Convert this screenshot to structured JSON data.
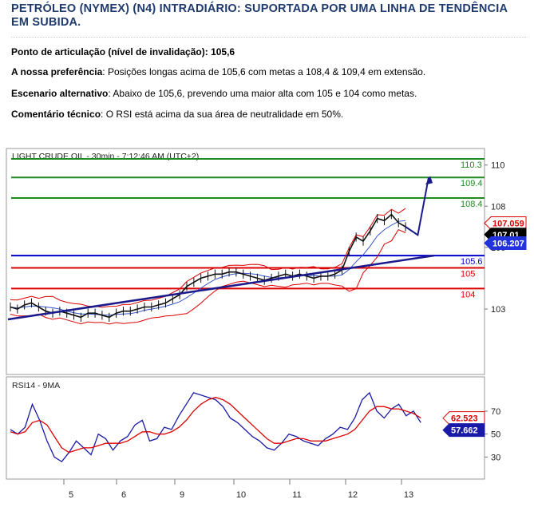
{
  "article": {
    "headline": "PETRÓLEO (NYMEX) (N4) INTRADIÁRIO: SUPORTADA POR UMA LINHA DE TENDÊNCIA EM SUBIDA.",
    "pivot": {
      "label": "Ponto de articulação (nível de invalidação):",
      "value": "105,6"
    },
    "preference": {
      "label": "A nossa preferência",
      "text": ": Posições longas acima de 105,6 com metas a 108,4 & 109,4 em extensão."
    },
    "alternative": {
      "label": "Escenario alternativo",
      "text": ": Abaixo de 105,6, prevendo uma maior alta com 105 e 104 como metas."
    },
    "comment": {
      "label": "Comentário técnico",
      "text": ": O RSI está acima da sua área de neutralidade em 50%."
    }
  },
  "colors": {
    "headline": "#1f3a6d",
    "green": "#1e8b1e",
    "blue": "#0000cc",
    "red": "#dd0000",
    "trend": "#1a1a8c",
    "rsi_blue": "#1a1aa8"
  },
  "chart_data": [
    {
      "type": "line",
      "title": "LIGHT CRUDE OIL - 30min - 7:12:46 AM (UTC+2)",
      "ylim": [
        101.8,
        110.3
      ],
      "y_ticks": [
        "110",
        "108",
        "106",
        "103"
      ],
      "x_ticks": [
        "5",
        "6",
        "9",
        "10",
        "11",
        "12",
        "13"
      ],
      "levels": [
        {
          "value": 110.3,
          "label": "110.3",
          "color": "green"
        },
        {
          "value": 109.4,
          "label": "109.4",
          "color": "green"
        },
        {
          "value": 108.4,
          "label": "108.4",
          "color": "green"
        },
        {
          "value": 105.6,
          "label": "105.6",
          "color": "blue"
        },
        {
          "value": 105,
          "label": "105",
          "color": "red"
        },
        {
          "value": 104,
          "label": "104",
          "color": "red"
        }
      ],
      "price_flags": [
        {
          "value": 107.059,
          "label": "107.059"
        },
        {
          "value": 107.01,
          "label": "107.01"
        },
        {
          "value": 106.207,
          "label": "106.207"
        }
      ],
      "trendline": {
        "x_from": 0.17,
        "x_to": 0.97,
        "y_from": 102.5,
        "y_to": 105.6
      },
      "projection": {
        "x": [
          0.905,
          0.933,
          0.958
        ],
        "y": [
          107.0,
          106.6,
          109.4
        ]
      },
      "series": [
        {
          "values": [
            103.1,
            103.0,
            103.2,
            103.3,
            103.1,
            102.9,
            102.8,
            102.9,
            102.8,
            102.7,
            102.6,
            102.8,
            102.8,
            102.7,
            102.6,
            102.8,
            102.9,
            102.9,
            103.0,
            103.1,
            103.1,
            103.2,
            103.3,
            103.5,
            103.7,
            104.1,
            104.3,
            104.5,
            104.6,
            104.7,
            104.7,
            104.8,
            104.8,
            104.7,
            104.6,
            104.5,
            104.4,
            104.5,
            104.6,
            104.7,
            104.6,
            104.7,
            104.6,
            104.5,
            104.6,
            104.6,
            104.7,
            104.9,
            105.8,
            106.5,
            106.3,
            106.8,
            107.4,
            107.3,
            107.6,
            107.2,
            107.0
          ]
        }
      ]
    },
    {
      "type": "line",
      "title": "RSI14 - 9MA",
      "ylim": [
        15,
        95
      ],
      "y_ticks": [
        "70",
        "50",
        "30"
      ],
      "series": [
        {
          "name": "RSI14",
          "values": [
            54,
            50,
            56,
            76,
            62,
            44,
            30,
            26,
            34,
            44,
            38,
            32,
            50,
            46,
            36,
            44,
            48,
            58,
            62,
            44,
            46,
            56,
            54,
            66,
            76,
            86,
            84,
            82,
            80,
            74,
            64,
            60,
            54,
            48,
            44,
            38,
            36,
            42,
            50,
            48,
            44,
            42,
            40,
            46,
            50,
            56,
            54,
            64,
            80,
            86,
            70,
            64,
            72,
            76,
            66,
            70,
            60
          ],
          "color": "rsi_blue"
        },
        {
          "name": "9MA",
          "values": [
            52,
            50,
            52,
            60,
            62,
            58,
            48,
            38,
            34,
            36,
            38,
            38,
            40,
            42,
            42,
            42,
            44,
            48,
            52,
            52,
            50,
            50,
            52,
            56,
            62,
            70,
            76,
            80,
            82,
            80,
            76,
            70,
            64,
            58,
            52,
            46,
            42,
            42,
            44,
            46,
            46,
            44,
            44,
            44,
            46,
            48,
            50,
            54,
            62,
            70,
            74,
            74,
            72,
            72,
            70,
            68,
            64
          ],
          "color": "red"
        }
      ],
      "flags": [
        {
          "value": 62.523,
          "label": "62.523",
          "color": "red"
        },
        {
          "value": 57.662,
          "label": "57.662",
          "color": "rsi_blue"
        }
      ]
    }
  ]
}
